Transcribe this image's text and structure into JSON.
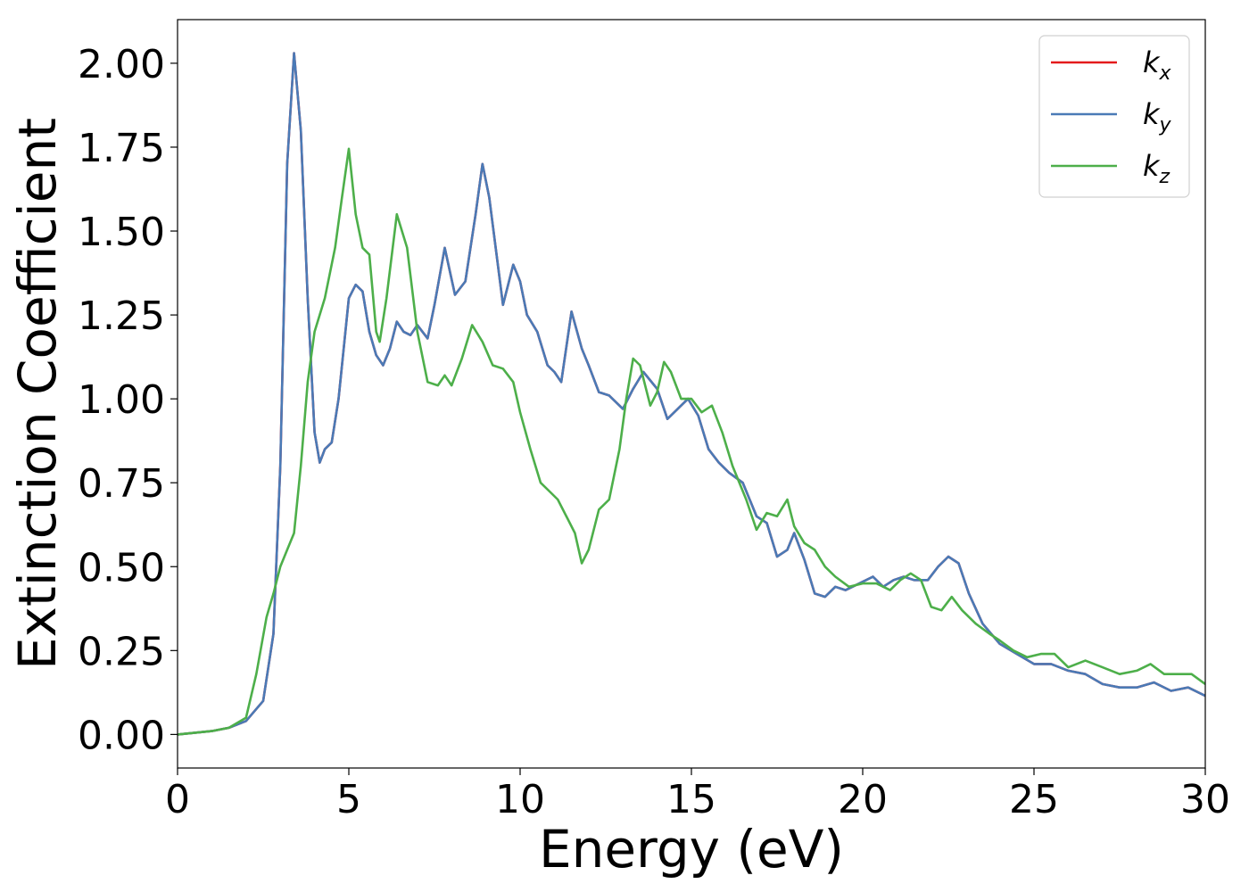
{
  "chart_data": {
    "type": "line",
    "xlabel": "Energy (eV)",
    "ylabel": "Extinction Coefficient",
    "xlim": [
      0,
      30
    ],
    "ylim": [
      -0.1,
      2.13
    ],
    "xticks": [
      0,
      5,
      10,
      15,
      20,
      25,
      30
    ],
    "xtick_labels": [
      "0",
      "5",
      "10",
      "15",
      "20",
      "25",
      "30"
    ],
    "yticks": [
      0,
      0.25,
      0.5,
      0.75,
      1.0,
      1.25,
      1.5,
      1.75,
      2.0
    ],
    "ytick_labels": [
      "0.00",
      "0.25",
      "0.50",
      "0.75",
      "1.00",
      "1.25",
      "1.50",
      "1.75",
      "2.00"
    ],
    "grid": false,
    "legend_position": "top-right",
    "series": [
      {
        "name": "k_x",
        "legend_base": "k",
        "legend_sub": "x",
        "color": "#e41a1c",
        "points": [
          [
            0,
            0.0
          ],
          [
            1,
            0.01
          ],
          [
            1.5,
            0.02
          ],
          [
            2,
            0.04
          ],
          [
            2.5,
            0.1
          ],
          [
            2.8,
            0.3
          ],
          [
            3.0,
            0.8
          ],
          [
            3.2,
            1.7
          ],
          [
            3.4,
            2.03
          ],
          [
            3.6,
            1.8
          ],
          [
            3.8,
            1.3
          ],
          [
            4.0,
            0.9
          ],
          [
            4.15,
            0.81
          ],
          [
            4.3,
            0.85
          ],
          [
            4.5,
            0.87
          ],
          [
            4.7,
            1.0
          ],
          [
            5.0,
            1.3
          ],
          [
            5.2,
            1.34
          ],
          [
            5.4,
            1.32
          ],
          [
            5.6,
            1.2
          ],
          [
            5.8,
            1.13
          ],
          [
            6.0,
            1.1
          ],
          [
            6.2,
            1.15
          ],
          [
            6.4,
            1.23
          ],
          [
            6.6,
            1.2
          ],
          [
            6.8,
            1.19
          ],
          [
            7.0,
            1.22
          ],
          [
            7.3,
            1.18
          ],
          [
            7.5,
            1.28
          ],
          [
            7.8,
            1.45
          ],
          [
            8.1,
            1.31
          ],
          [
            8.4,
            1.35
          ],
          [
            8.7,
            1.55
          ],
          [
            8.9,
            1.7
          ],
          [
            9.1,
            1.6
          ],
          [
            9.5,
            1.28
          ],
          [
            9.8,
            1.4
          ],
          [
            10.0,
            1.35
          ],
          [
            10.2,
            1.25
          ],
          [
            10.5,
            1.2
          ],
          [
            10.8,
            1.1
          ],
          [
            11.0,
            1.08
          ],
          [
            11.2,
            1.05
          ],
          [
            11.5,
            1.26
          ],
          [
            11.8,
            1.15
          ],
          [
            12.0,
            1.1
          ],
          [
            12.3,
            1.02
          ],
          [
            12.6,
            1.01
          ],
          [
            13.0,
            0.97
          ],
          [
            13.3,
            1.03
          ],
          [
            13.6,
            1.08
          ],
          [
            14.0,
            1.03
          ],
          [
            14.3,
            0.94
          ],
          [
            14.6,
            0.97
          ],
          [
            14.9,
            1.0
          ],
          [
            15.2,
            0.95
          ],
          [
            15.5,
            0.85
          ],
          [
            15.8,
            0.81
          ],
          [
            16.1,
            0.78
          ],
          [
            16.5,
            0.75
          ],
          [
            16.9,
            0.65
          ],
          [
            17.2,
            0.63
          ],
          [
            17.5,
            0.53
          ],
          [
            17.8,
            0.55
          ],
          [
            18.0,
            0.6
          ],
          [
            18.3,
            0.52
          ],
          [
            18.6,
            0.42
          ],
          [
            18.9,
            0.41
          ],
          [
            19.2,
            0.44
          ],
          [
            19.5,
            0.43
          ],
          [
            19.9,
            0.45
          ],
          [
            20.3,
            0.47
          ],
          [
            20.6,
            0.44
          ],
          [
            20.9,
            0.46
          ],
          [
            21.2,
            0.47
          ],
          [
            21.5,
            0.46
          ],
          [
            21.9,
            0.46
          ],
          [
            22.2,
            0.5
          ],
          [
            22.5,
            0.53
          ],
          [
            22.8,
            0.51
          ],
          [
            23.1,
            0.42
          ],
          [
            23.5,
            0.33
          ],
          [
            24.0,
            0.27
          ],
          [
            24.5,
            0.24
          ],
          [
            25.0,
            0.21
          ],
          [
            25.5,
            0.21
          ],
          [
            26.0,
            0.19
          ],
          [
            26.5,
            0.18
          ],
          [
            27.0,
            0.15
          ],
          [
            27.5,
            0.14
          ],
          [
            28.0,
            0.14
          ],
          [
            28.5,
            0.155
          ],
          [
            29.0,
            0.13
          ],
          [
            29.5,
            0.14
          ],
          [
            30,
            0.115
          ]
        ]
      },
      {
        "name": "k_y",
        "legend_base": "k",
        "legend_sub": "y",
        "color": "#4a7ab6",
        "points": [
          [
            0,
            0.0
          ],
          [
            1,
            0.01
          ],
          [
            1.5,
            0.02
          ],
          [
            2,
            0.04
          ],
          [
            2.5,
            0.1
          ],
          [
            2.8,
            0.3
          ],
          [
            3.0,
            0.8
          ],
          [
            3.2,
            1.7
          ],
          [
            3.4,
            2.03
          ],
          [
            3.6,
            1.8
          ],
          [
            3.8,
            1.3
          ],
          [
            4.0,
            0.9
          ],
          [
            4.15,
            0.81
          ],
          [
            4.3,
            0.85
          ],
          [
            4.5,
            0.87
          ],
          [
            4.7,
            1.0
          ],
          [
            5.0,
            1.3
          ],
          [
            5.2,
            1.34
          ],
          [
            5.4,
            1.32
          ],
          [
            5.6,
            1.2
          ],
          [
            5.8,
            1.13
          ],
          [
            6.0,
            1.1
          ],
          [
            6.2,
            1.15
          ],
          [
            6.4,
            1.23
          ],
          [
            6.6,
            1.2
          ],
          [
            6.8,
            1.19
          ],
          [
            7.0,
            1.22
          ],
          [
            7.3,
            1.18
          ],
          [
            7.5,
            1.28
          ],
          [
            7.8,
            1.45
          ],
          [
            8.1,
            1.31
          ],
          [
            8.4,
            1.35
          ],
          [
            8.7,
            1.55
          ],
          [
            8.9,
            1.7
          ],
          [
            9.1,
            1.6
          ],
          [
            9.5,
            1.28
          ],
          [
            9.8,
            1.4
          ],
          [
            10.0,
            1.35
          ],
          [
            10.2,
            1.25
          ],
          [
            10.5,
            1.2
          ],
          [
            10.8,
            1.1
          ],
          [
            11.0,
            1.08
          ],
          [
            11.2,
            1.05
          ],
          [
            11.5,
            1.26
          ],
          [
            11.8,
            1.15
          ],
          [
            12.0,
            1.1
          ],
          [
            12.3,
            1.02
          ],
          [
            12.6,
            1.01
          ],
          [
            13.0,
            0.97
          ],
          [
            13.3,
            1.03
          ],
          [
            13.6,
            1.08
          ],
          [
            14.0,
            1.03
          ],
          [
            14.3,
            0.94
          ],
          [
            14.6,
            0.97
          ],
          [
            14.9,
            1.0
          ],
          [
            15.2,
            0.95
          ],
          [
            15.5,
            0.85
          ],
          [
            15.8,
            0.81
          ],
          [
            16.1,
            0.78
          ],
          [
            16.5,
            0.75
          ],
          [
            16.9,
            0.65
          ],
          [
            17.2,
            0.63
          ],
          [
            17.5,
            0.53
          ],
          [
            17.8,
            0.55
          ],
          [
            18.0,
            0.6
          ],
          [
            18.3,
            0.52
          ],
          [
            18.6,
            0.42
          ],
          [
            18.9,
            0.41
          ],
          [
            19.2,
            0.44
          ],
          [
            19.5,
            0.43
          ],
          [
            19.9,
            0.45
          ],
          [
            20.3,
            0.47
          ],
          [
            20.6,
            0.44
          ],
          [
            20.9,
            0.46
          ],
          [
            21.2,
            0.47
          ],
          [
            21.5,
            0.46
          ],
          [
            21.9,
            0.46
          ],
          [
            22.2,
            0.5
          ],
          [
            22.5,
            0.53
          ],
          [
            22.8,
            0.51
          ],
          [
            23.1,
            0.42
          ],
          [
            23.5,
            0.33
          ],
          [
            24.0,
            0.27
          ],
          [
            24.5,
            0.24
          ],
          [
            25.0,
            0.21
          ],
          [
            25.5,
            0.21
          ],
          [
            26.0,
            0.19
          ],
          [
            26.5,
            0.18
          ],
          [
            27.0,
            0.15
          ],
          [
            27.5,
            0.14
          ],
          [
            28.0,
            0.14
          ],
          [
            28.5,
            0.155
          ],
          [
            29.0,
            0.13
          ],
          [
            29.5,
            0.14
          ],
          [
            30,
            0.115
          ]
        ]
      },
      {
        "name": "k_z",
        "legend_base": "k",
        "legend_sub": "z",
        "color": "#4daf4a",
        "points": [
          [
            0,
            0.0
          ],
          [
            1,
            0.01
          ],
          [
            1.5,
            0.02
          ],
          [
            2,
            0.05
          ],
          [
            2.3,
            0.18
          ],
          [
            2.6,
            0.35
          ],
          [
            2.8,
            0.42
          ],
          [
            3.0,
            0.5
          ],
          [
            3.2,
            0.55
          ],
          [
            3.4,
            0.6
          ],
          [
            3.6,
            0.8
          ],
          [
            3.8,
            1.05
          ],
          [
            4.0,
            1.2
          ],
          [
            4.3,
            1.3
          ],
          [
            4.6,
            1.45
          ],
          [
            4.8,
            1.6
          ],
          [
            5.0,
            1.745
          ],
          [
            5.2,
            1.55
          ],
          [
            5.4,
            1.45
          ],
          [
            5.6,
            1.43
          ],
          [
            5.8,
            1.2
          ],
          [
            5.9,
            1.17
          ],
          [
            6.1,
            1.3
          ],
          [
            6.4,
            1.55
          ],
          [
            6.7,
            1.45
          ],
          [
            7.0,
            1.2
          ],
          [
            7.3,
            1.05
          ],
          [
            7.6,
            1.04
          ],
          [
            7.8,
            1.07
          ],
          [
            8.0,
            1.04
          ],
          [
            8.3,
            1.12
          ],
          [
            8.6,
            1.22
          ],
          [
            8.9,
            1.17
          ],
          [
            9.2,
            1.1
          ],
          [
            9.5,
            1.09
          ],
          [
            9.8,
            1.05
          ],
          [
            10.0,
            0.96
          ],
          [
            10.3,
            0.85
          ],
          [
            10.6,
            0.75
          ],
          [
            10.9,
            0.72
          ],
          [
            11.1,
            0.7
          ],
          [
            11.4,
            0.64
          ],
          [
            11.6,
            0.6
          ],
          [
            11.8,
            0.51
          ],
          [
            12.0,
            0.55
          ],
          [
            12.3,
            0.67
          ],
          [
            12.6,
            0.7
          ],
          [
            12.9,
            0.85
          ],
          [
            13.1,
            1.0
          ],
          [
            13.3,
            1.12
          ],
          [
            13.5,
            1.1
          ],
          [
            13.8,
            0.98
          ],
          [
            14.0,
            1.02
          ],
          [
            14.2,
            1.11
          ],
          [
            14.4,
            1.08
          ],
          [
            14.7,
            1.0
          ],
          [
            15.0,
            1.0
          ],
          [
            15.3,
            0.96
          ],
          [
            15.6,
            0.98
          ],
          [
            15.9,
            0.9
          ],
          [
            16.2,
            0.8
          ],
          [
            16.6,
            0.7
          ],
          [
            16.9,
            0.61
          ],
          [
            17.2,
            0.66
          ],
          [
            17.5,
            0.65
          ],
          [
            17.8,
            0.7
          ],
          [
            18.0,
            0.62
          ],
          [
            18.3,
            0.57
          ],
          [
            18.6,
            0.55
          ],
          [
            18.9,
            0.5
          ],
          [
            19.2,
            0.47
          ],
          [
            19.6,
            0.44
          ],
          [
            20.0,
            0.45
          ],
          [
            20.4,
            0.45
          ],
          [
            20.8,
            0.43
          ],
          [
            21.1,
            0.46
          ],
          [
            21.4,
            0.48
          ],
          [
            21.7,
            0.46
          ],
          [
            22.0,
            0.38
          ],
          [
            22.3,
            0.37
          ],
          [
            22.6,
            0.41
          ],
          [
            22.9,
            0.37
          ],
          [
            23.3,
            0.33
          ],
          [
            23.7,
            0.3
          ],
          [
            24.0,
            0.28
          ],
          [
            24.4,
            0.25
          ],
          [
            24.8,
            0.23
          ],
          [
            25.2,
            0.24
          ],
          [
            25.6,
            0.24
          ],
          [
            26.0,
            0.2
          ],
          [
            26.5,
            0.22
          ],
          [
            27.0,
            0.2
          ],
          [
            27.5,
            0.18
          ],
          [
            28.0,
            0.19
          ],
          [
            28.4,
            0.21
          ],
          [
            28.8,
            0.18
          ],
          [
            29.2,
            0.18
          ],
          [
            29.6,
            0.18
          ],
          [
            30,
            0.15
          ]
        ]
      }
    ]
  }
}
